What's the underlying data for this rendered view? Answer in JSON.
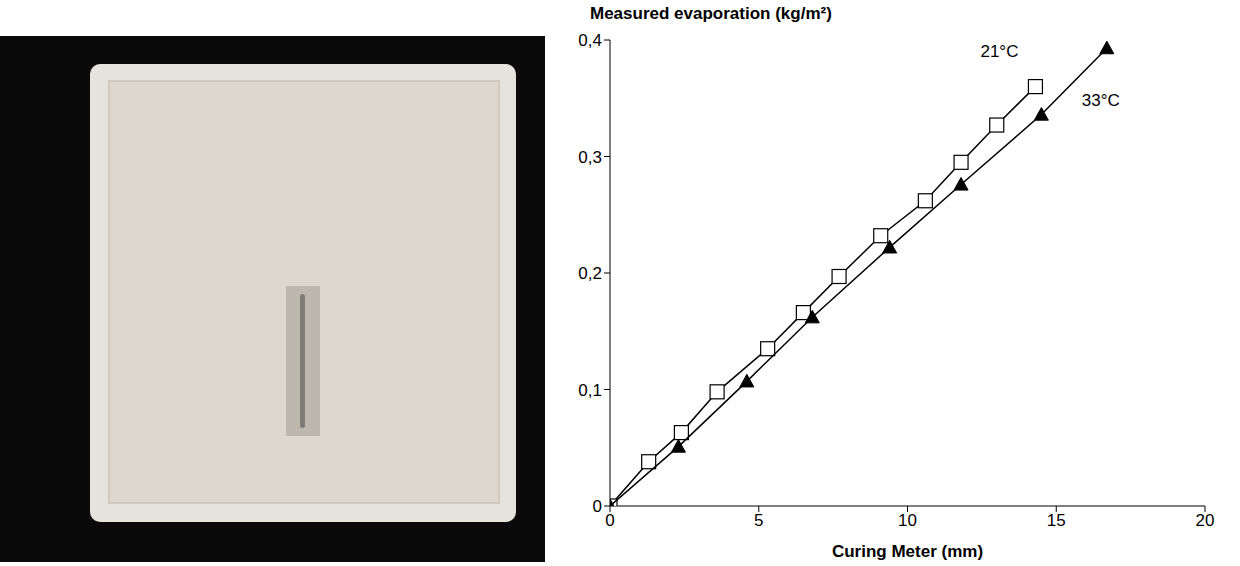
{
  "chart_data": {
    "type": "scatter",
    "title": "Measured evaporation (kg/m²)",
    "x_label": "Curing Meter (mm)",
    "xlim": [
      0,
      20
    ],
    "xticks": [
      0,
      5,
      10,
      15,
      20
    ],
    "ylim": [
      0,
      0.4
    ],
    "yticks": [
      0,
      {
        "value": 0.1,
        "label": "0,1"
      },
      {
        "value": 0.2,
        "label": "0,2"
      },
      {
        "value": 0.3,
        "label": "0,3"
      },
      {
        "value": 0.4,
        "label": "0,4"
      }
    ],
    "grid": false,
    "series": [
      {
        "name": "21°C",
        "color": "#000000",
        "marker": "open_square",
        "line_style": "solid",
        "x": [
          0,
          1.3,
          2.4,
          3.6,
          5.3,
          6.5,
          7.7,
          9.1,
          10.6,
          11.8,
          13.0,
          14.3
        ],
        "values": [
          0,
          0.038,
          0.063,
          0.098,
          0.135,
          0.166,
          0.197,
          0.232,
          0.262,
          0.295,
          0.327,
          0.36
        ]
      },
      {
        "name": "33°C",
        "color": "#000000",
        "marker": "triangle",
        "line_style": "solid",
        "x": [
          0,
          2.3,
          4.6,
          6.8,
          9.4,
          11.8,
          14.5,
          16.7
        ],
        "values": [
          0,
          0.051,
          0.107,
          0.162,
          0.222,
          0.276,
          0.336,
          0.393
        ]
      }
    ]
  }
}
